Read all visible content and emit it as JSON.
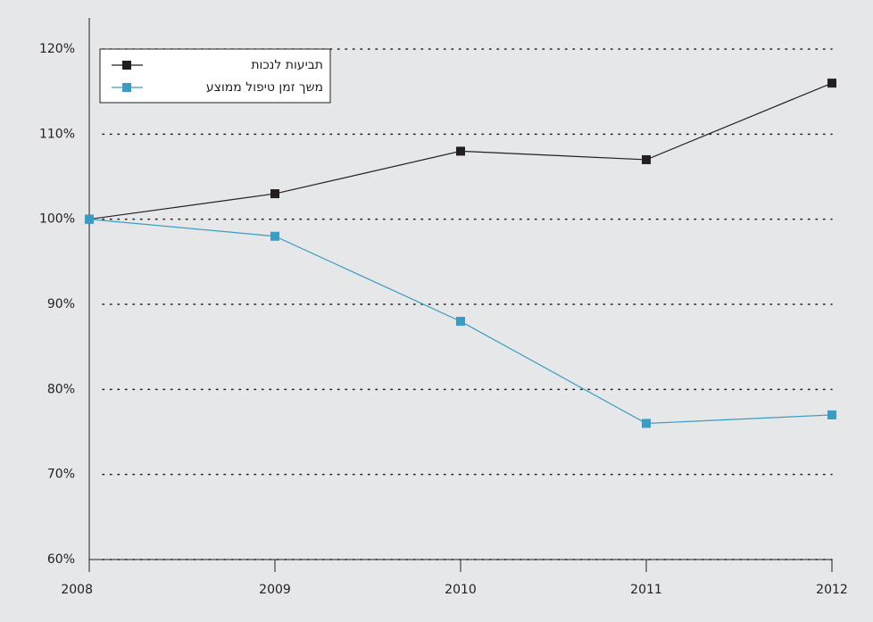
{
  "chart_data": {
    "type": "line",
    "x": [
      2008,
      2009,
      2010,
      2011,
      2012
    ],
    "xlim": [
      2008,
      2012
    ],
    "xticks": [
      2008,
      2009,
      2010,
      2011,
      2012
    ],
    "ylim": [
      60,
      120
    ],
    "yticks": [
      {
        "value": 60,
        "label": "60%"
      },
      {
        "value": 70,
        "label": "70%"
      },
      {
        "value": 80,
        "label": "80%"
      },
      {
        "value": 90,
        "label": "90%"
      },
      {
        "value": 100,
        "label": "100%"
      },
      {
        "value": 110,
        "label": "110%"
      },
      {
        "value": 120,
        "label": "120%"
      }
    ],
    "grid": true,
    "legend": "upper left",
    "series": [
      {
        "name": "תביעות לנכות",
        "color": "#231f20",
        "values": [
          100,
          103,
          108,
          107,
          116
        ]
      },
      {
        "name": "משך זמן טיפול ממוצע",
        "color": "#3a9cc3",
        "values": [
          100,
          98,
          88,
          76,
          77
        ]
      }
    ]
  }
}
